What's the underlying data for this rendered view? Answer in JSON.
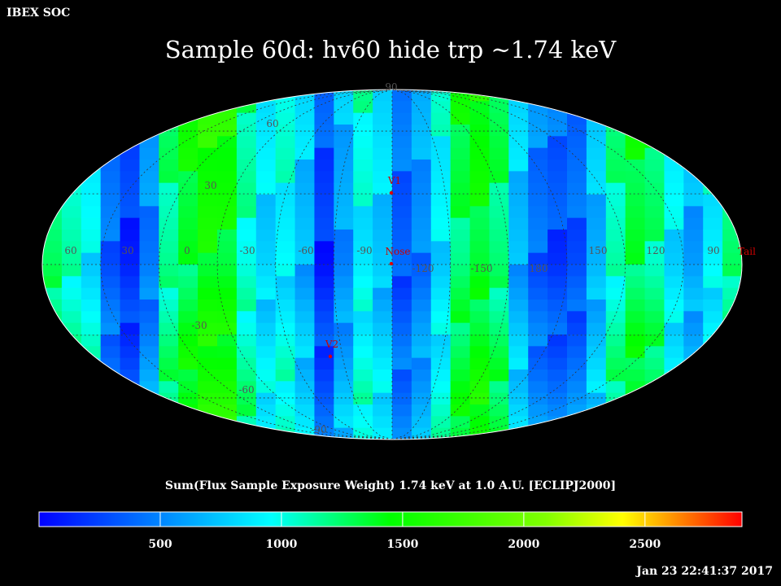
{
  "header": {
    "corner_label": "IBEX SOC",
    "title": "Sample 60d: hv60 hide trp ~1.74 keV",
    "timestamp": "Jan 23 22:41:37 2017"
  },
  "colorbar": {
    "label": "Sum(Flux Sample Exposure Weight)  1.74 keV at 1.0 A.U. [ECLIPJ2000]",
    "ticks": [
      "500",
      "1000",
      "1500",
      "2000",
      "2500"
    ],
    "tick_values": [
      500,
      1000,
      1500,
      2000,
      2500
    ],
    "range": [
      0,
      2900
    ],
    "colors": [
      "#0000ff",
      "#00ffff",
      "#00ff00",
      "#ffff00",
      "#ff0000"
    ]
  },
  "chart_data": {
    "type": "heatmap",
    "projection": "Mollweide (ecliptic, J2000)",
    "title": "Sample 60d: hv60 hide trp ~1.74 keV",
    "colorbar_label": "Sum(Flux Sample Exposure Weight)  1.74 keV at 1.0 A.U. [ECLIPJ2000]",
    "value_range": [
      0,
      2900
    ],
    "grid": true,
    "longitude_labels": [
      "60",
      "30",
      "0",
      "-30",
      "-60",
      "-90",
      "-120",
      "-150",
      "180",
      "150",
      "120",
      "90"
    ],
    "latitude_labels": [
      "90",
      "60",
      "30",
      "-30",
      "-60",
      "-90"
    ],
    "markers": [
      {
        "name": "V1",
        "lon": 255,
        "lat": 34
      },
      {
        "name": "Nose",
        "lon": 255,
        "lat": 5
      },
      {
        "name": "V2",
        "lon": 289,
        "lat": -32
      },
      {
        "name": "Tail",
        "lon": 75,
        "lat": -5
      }
    ]
  }
}
